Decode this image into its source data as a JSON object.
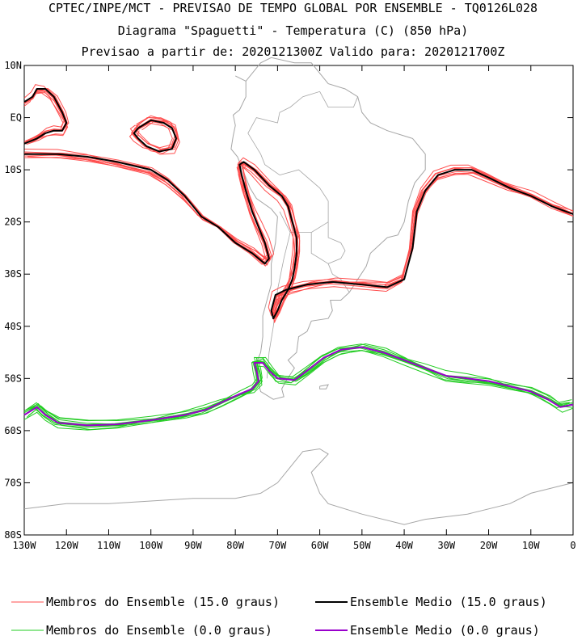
{
  "chart_data": {
    "type": "line",
    "title": "CPTEC/INPE/MCT - PREVISAO DE TEMPO GLOBAL POR ENSEMBLE - TQ0126L028",
    "subtitle": "Diagrama \"Spaguetti\" - Temperatura (C) (850 hPa)",
    "subtitle2": "Previsao a partir de: 2020121300Z  Valido para: 2020121700Z",
    "xlabel": "",
    "ylabel": "",
    "xlim": [
      -130,
      0
    ],
    "ylim": [
      -80,
      10
    ],
    "x_ticks": [
      {
        "value": -130,
        "label": "130W"
      },
      {
        "value": -120,
        "label": "120W"
      },
      {
        "value": -110,
        "label": "110W"
      },
      {
        "value": -100,
        "label": "100W"
      },
      {
        "value": -90,
        "label": "90W"
      },
      {
        "value": -80,
        "label": "80W"
      },
      {
        "value": -70,
        "label": "70W"
      },
      {
        "value": -60,
        "label": "60W"
      },
      {
        "value": -50,
        "label": "50W"
      },
      {
        "value": -40,
        "label": "40W"
      },
      {
        "value": -30,
        "label": "30W"
      },
      {
        "value": -20,
        "label": "20W"
      },
      {
        "value": -10,
        "label": "10W"
      },
      {
        "value": 0,
        "label": "0"
      }
    ],
    "y_ticks": [
      {
        "value": 10,
        "label": "10N"
      },
      {
        "value": 0,
        "label": "EQ"
      },
      {
        "value": -10,
        "label": "10S"
      },
      {
        "value": -20,
        "label": "20S"
      },
      {
        "value": -30,
        "label": "30S"
      },
      {
        "value": -40,
        "label": "40S"
      },
      {
        "value": -50,
        "label": "50S"
      },
      {
        "value": -60,
        "label": "60S"
      },
      {
        "value": -70,
        "label": "70S"
      },
      {
        "value": -80,
        "label": "80S"
      }
    ],
    "series": [
      {
        "name": "Ensemble Medio (15.0 graus)",
        "color": "#000000",
        "width": 2,
        "segments": [
          [
            [
              -130,
              -7
            ],
            [
              -122,
              -7
            ],
            [
              -115,
              -7.5
            ],
            [
              -108,
              -8.5
            ],
            [
              -100,
              -10
            ],
            [
              -96,
              -12
            ],
            [
              -92,
              -15
            ],
            [
              -88,
              -19
            ],
            [
              -84,
              -21
            ],
            [
              -80,
              -24
            ],
            [
              -76,
              -26
            ],
            [
              -73,
              -28
            ],
            [
              -72,
              -27
            ],
            [
              -73,
              -24
            ],
            [
              -74.5,
              -21
            ],
            [
              -76,
              -18
            ],
            [
              -77.5,
              -14
            ],
            [
              -78.5,
              -11
            ],
            [
              -79,
              -9
            ],
            [
              -78,
              -8.5
            ],
            [
              -75.5,
              -10
            ],
            [
              -72,
              -13
            ],
            [
              -69,
              -15
            ],
            [
              -67.5,
              -17
            ],
            [
              -66.5,
              -20
            ],
            [
              -65.5,
              -23
            ],
            [
              -65.5,
              -26
            ],
            [
              -66,
              -29
            ],
            [
              -66.5,
              -31
            ],
            [
              -67.5,
              -33
            ],
            [
              -69,
              -35
            ],
            [
              -70,
              -37
            ],
            [
              -71,
              -38.5
            ],
            [
              -71.5,
              -37
            ],
            [
              -70.5,
              -34
            ],
            [
              -68,
              -33
            ],
            [
              -63,
              -32
            ],
            [
              -57,
              -31.5
            ],
            [
              -50,
              -32
            ],
            [
              -44,
              -32.5
            ],
            [
              -40,
              -31
            ],
            [
              -38,
              -25
            ],
            [
              -37,
              -18
            ],
            [
              -35,
              -14
            ],
            [
              -32,
              -11
            ],
            [
              -28,
              -10
            ],
            [
              -24,
              -10
            ],
            [
              -20,
              -11.5
            ],
            [
              -15,
              -13.5
            ],
            [
              -10,
              -15
            ],
            [
              -5,
              -17
            ],
            [
              0,
              -18.5
            ]
          ],
          [
            [
              -130,
              -5
            ],
            [
              -127,
              -4
            ],
            [
              -125,
              -3
            ],
            [
              -123,
              -2.5
            ],
            [
              -121,
              -2.5
            ],
            [
              -120,
              -1
            ],
            [
              -121,
              1
            ],
            [
              -123,
              4
            ],
            [
              -125,
              5.5
            ],
            [
              -127,
              5.5
            ],
            [
              -128,
              4
            ],
            [
              -130,
              3
            ]
          ],
          [
            [
              -103,
              -2
            ],
            [
              -100,
              -0.5
            ],
            [
              -97,
              -1
            ],
            [
              -95,
              -2
            ],
            [
              -94,
              -4
            ],
            [
              -95,
              -6
            ],
            [
              -98,
              -6.5
            ],
            [
              -101,
              -5.5
            ],
            [
              -103,
              -4
            ],
            [
              -104,
              -3
            ],
            [
              -103,
              -2
            ]
          ]
        ]
      },
      {
        "name": "Ensemble Medio (0.0 graus)",
        "color": "#9900cc",
        "width": 2,
        "segments": [
          [
            [
              -130,
              -57
            ],
            [
              -127,
              -55.5
            ],
            [
              -125,
              -57
            ],
            [
              -122,
              -58.5
            ],
            [
              -115,
              -59
            ],
            [
              -108,
              -58.8
            ],
            [
              -100,
              -58
            ],
            [
              -92,
              -57
            ],
            [
              -87,
              -56
            ],
            [
              -83,
              -54.5
            ],
            [
              -79,
              -53
            ],
            [
              -76,
              -52
            ],
            [
              -74.5,
              -50.5
            ],
            [
              -75,
              -48.5
            ],
            [
              -75.5,
              -47
            ],
            [
              -73.5,
              -47
            ],
            [
              -72,
              -48.5
            ],
            [
              -70,
              -50
            ],
            [
              -66,
              -50.3
            ],
            [
              -63,
              -48.5
            ],
            [
              -59,
              -46
            ],
            [
              -55,
              -44.5
            ],
            [
              -50,
              -44
            ],
            [
              -45,
              -45
            ],
            [
              -40,
              -46.5
            ],
            [
              -35,
              -48
            ],
            [
              -30,
              -49.5
            ],
            [
              -25,
              -50
            ],
            [
              -20,
              -50.5
            ],
            [
              -15,
              -51.5
            ],
            [
              -10,
              -52.5
            ],
            [
              -6,
              -54
            ],
            [
              -3,
              -55.5
            ],
            [
              0,
              -55
            ]
          ]
        ]
      }
    ],
    "legend": [
      {
        "label": "Membros do Ensemble (15.0 graus)",
        "color": "#ff4d4d",
        "width": 1
      },
      {
        "label": "Ensemble Medio (15.0 graus)",
        "color": "#000000",
        "width": 2
      },
      {
        "label": "Membros do Ensemble (0.0 graus)",
        "color": "#22cc22",
        "width": 1
      },
      {
        "label": "Ensemble Medio (0.0 graus)",
        "color": "#9900cc",
        "width": 2
      }
    ],
    "member_color_15": "#ff4d4d",
    "member_color_0": "#22cc22",
    "map_color": "#a6a6a6",
    "map_outlines": [
      [
        [
          -80,
          8
        ],
        [
          -77.5,
          7
        ],
        [
          -74,
          10.5
        ],
        [
          -71.5,
          11.5
        ],
        [
          -66,
          10.5
        ],
        [
          -62,
          10.5
        ],
        [
          -58,
          6.5
        ],
        [
          -54,
          5.5
        ],
        [
          -51,
          4
        ],
        [
          -50,
          1
        ],
        [
          -48,
          -1
        ],
        [
          -44,
          -2.5
        ],
        [
          -38,
          -4
        ],
        [
          -35,
          -7
        ],
        [
          -35,
          -10
        ],
        [
          -37.5,
          -12.5
        ],
        [
          -39,
          -16
        ],
        [
          -40,
          -20
        ],
        [
          -41.5,
          -22.5
        ],
        [
          -44,
          -23
        ],
        [
          -48,
          -26
        ],
        [
          -49,
          -28.5
        ],
        [
          -51,
          -31
        ],
        [
          -53,
          -33.5
        ],
        [
          -55,
          -35
        ],
        [
          -57.5,
          -35
        ],
        [
          -57,
          -37
        ],
        [
          -58,
          -38.5
        ],
        [
          -62,
          -39
        ],
        [
          -63,
          -41
        ],
        [
          -65,
          -42
        ],
        [
          -65.5,
          -45
        ],
        [
          -67.5,
          -46.5
        ],
        [
          -66,
          -48
        ],
        [
          -68,
          -50.5
        ],
        [
          -69,
          -52
        ],
        [
          -68.5,
          -53.5
        ],
        [
          -71,
          -54
        ],
        [
          -74,
          -52.5
        ],
        [
          -75.5,
          -48
        ],
        [
          -74,
          -45
        ],
        [
          -73.5,
          -42
        ],
        [
          -73.5,
          -38
        ],
        [
          -72.5,
          -35
        ],
        [
          -71.5,
          -32
        ],
        [
          -71.5,
          -28
        ],
        [
          -70.5,
          -24
        ],
        [
          -70,
          -19
        ],
        [
          -71.5,
          -17.5
        ],
        [
          -75,
          -15.5
        ],
        [
          -76.5,
          -13.5
        ],
        [
          -78,
          -10.5
        ],
        [
          -79.5,
          -7.5
        ],
        [
          -81,
          -6
        ],
        [
          -80.5,
          -3.5
        ],
        [
          -80,
          -1.5
        ],
        [
          -80.5,
          0.5
        ],
        [
          -79,
          1.5
        ],
        [
          -77.5,
          4
        ],
        [
          -77.5,
          7
        ],
        [
          -80,
          8
        ]
      ],
      [
        [
          -130,
          -75
        ],
        [
          -120,
          -74
        ],
        [
          -110,
          -74
        ],
        [
          -100,
          -73.5
        ],
        [
          -90,
          -73
        ],
        [
          -80,
          -73
        ],
        [
          -74,
          -72
        ],
        [
          -70,
          -70
        ],
        [
          -67,
          -67
        ],
        [
          -64,
          -64
        ],
        [
          -60,
          -63.5
        ],
        [
          -58,
          -64.5
        ],
        [
          -62,
          -68
        ],
        [
          -60,
          -72
        ],
        [
          -58,
          -74
        ],
        [
          -50,
          -76
        ],
        [
          -40,
          -78
        ],
        [
          -35,
          -77
        ],
        [
          -25,
          -76
        ],
        [
          -15,
          -74
        ],
        [
          -10,
          -72
        ],
        [
          -5,
          -71
        ],
        [
          0,
          -70
        ]
      ],
      [
        [
          -60,
          -51.5
        ],
        [
          -58,
          -51.2
        ],
        [
          -58.5,
          -52
        ],
        [
          -60,
          -52
        ],
        [
          -60,
          -51.5
        ]
      ]
    ],
    "map_borders": [
      [
        [
          -69.5,
          -18
        ],
        [
          -67,
          -22
        ],
        [
          -62,
          -22
        ],
        [
          -58,
          -20
        ],
        [
          -58,
          -16
        ],
        [
          -60,
          -13.5
        ],
        [
          -65,
          -10
        ],
        [
          -69.5,
          -11
        ]
      ],
      [
        [
          -69.5,
          -11
        ],
        [
          -73,
          -9
        ],
        [
          -74,
          -7
        ],
        [
          -77,
          -3
        ],
        [
          -75,
          0
        ],
        [
          -70,
          -1
        ],
        [
          -69.5,
          1
        ],
        [
          -67,
          2
        ],
        [
          -64,
          4
        ],
        [
          -60,
          5
        ],
        [
          -58,
          2
        ],
        [
          -55,
          2
        ],
        [
          -52,
          2
        ],
        [
          -51,
          4
        ]
      ],
      [
        [
          -62,
          -22
        ],
        [
          -62,
          -26
        ],
        [
          -58,
          -28
        ],
        [
          -55,
          -27
        ],
        [
          -54,
          -25.5
        ],
        [
          -55,
          -24
        ],
        [
          -58,
          -23
        ],
        [
          -58,
          -20
        ]
      ],
      [
        [
          -58,
          -28
        ],
        [
          -57,
          -30
        ],
        [
          -55,
          -31
        ],
        [
          -53,
          -33.5
        ]
      ],
      [
        [
          -67,
          -22
        ],
        [
          -68.5,
          -27
        ],
        [
          -70,
          -33
        ],
        [
          -71,
          -40
        ],
        [
          -72,
          -45
        ],
        [
          -72.5,
          -50
        ]
      ]
    ]
  },
  "legend": {
    "members_15": "Membros do Ensemble (15.0 graus)",
    "mean_15": "Ensemble Medio (15.0 graus)",
    "members_0": "Membros do Ensemble (0.0 graus)",
    "mean_0": "Ensemble Medio (0.0 graus)"
  }
}
